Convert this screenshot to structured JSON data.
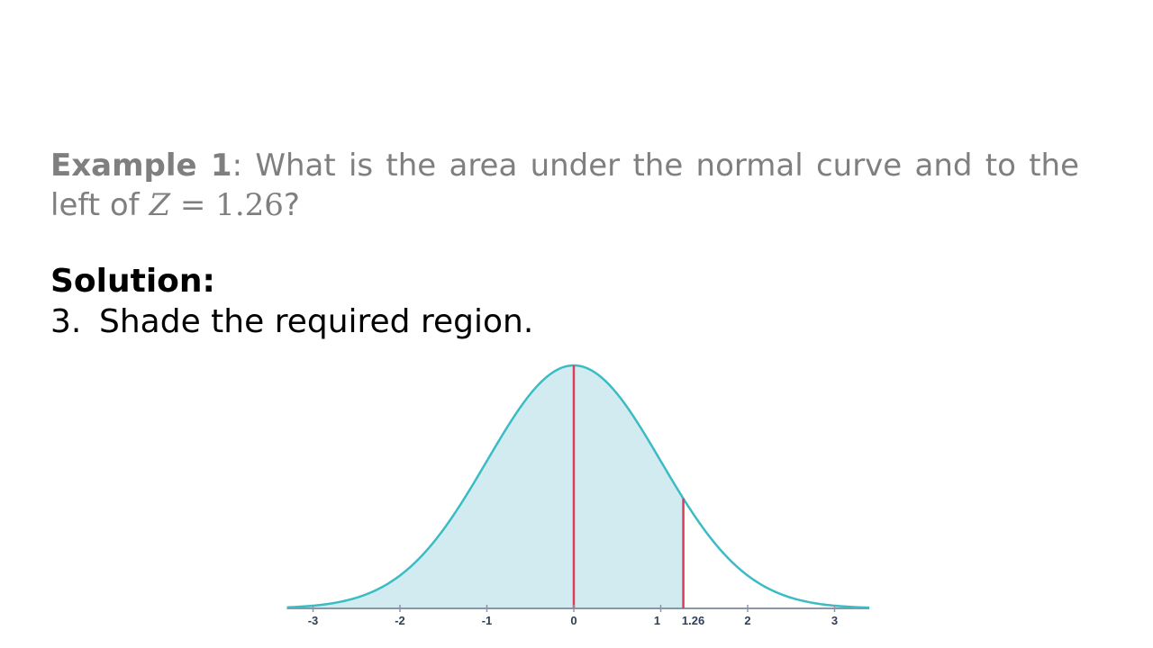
{
  "problem": {
    "label": "Example 1",
    "separator": ":",
    "text": " What is the area under the normal curve and to the left of ",
    "math_var": "Z",
    "math_rest": " = 1.26",
    "end": "?"
  },
  "solution": {
    "heading": "Solution:",
    "step_number": "3.",
    "step_text": "Shade the required region."
  },
  "chart_data": {
    "type": "area",
    "title": "",
    "xlabel": "",
    "ylabel": "",
    "distribution": "standard normal",
    "xlim": [
      -3.3,
      3.4
    ],
    "ticks": [
      {
        "value": -3,
        "label": "-3"
      },
      {
        "value": -2,
        "label": "-2"
      },
      {
        "value": -1,
        "label": "-1"
      },
      {
        "value": 0,
        "label": "0"
      },
      {
        "value": 1,
        "label": "1"
      },
      {
        "value": 1.26,
        "label": "1.26"
      },
      {
        "value": 2,
        "label": "2"
      },
      {
        "value": 3,
        "label": "3"
      }
    ],
    "shaded_region": {
      "from": "-inf",
      "to": 1.26
    },
    "markers": [
      0,
      1.26
    ],
    "colors": {
      "curve": "#3bbcc4",
      "fill": "#d2ebf0",
      "marker": "#d93e5a",
      "axis": "#8c96a5",
      "tick_label": "#2e3f57"
    }
  }
}
